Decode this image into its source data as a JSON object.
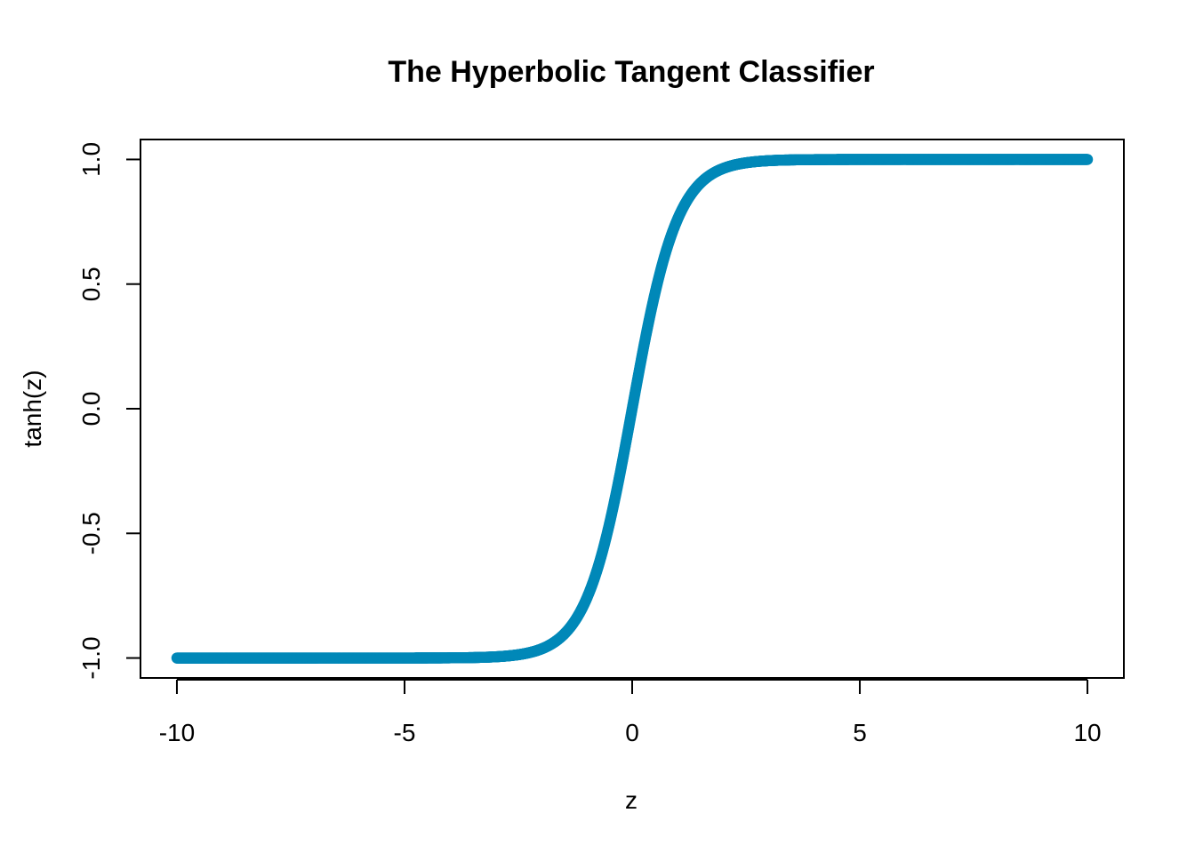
{
  "chart_data": {
    "type": "scatter",
    "title": "The Hyperbolic Tangent Classifier",
    "xlabel": "z",
    "ylabel": "tanh(z)",
    "function": "tanh",
    "x_range": [
      -10,
      10
    ],
    "xlim": [
      -10.8,
      10.8
    ],
    "ylim": [
      -1.08,
      1.08
    ],
    "xticks": [
      -10,
      -5,
      0,
      5,
      10
    ],
    "xtick_labels": [
      "-10",
      "-5",
      "0",
      "5",
      "10"
    ],
    "yticks": [
      -1.0,
      -0.5,
      0.0,
      0.5,
      1.0
    ],
    "ytick_labels": [
      "-1.0",
      "-0.5",
      "0.0",
      "0.5",
      "1.0"
    ],
    "grid": false,
    "series": [
      {
        "name": "tanh(z)",
        "color": "#0088b8",
        "marker": "filled-circle"
      }
    ]
  }
}
